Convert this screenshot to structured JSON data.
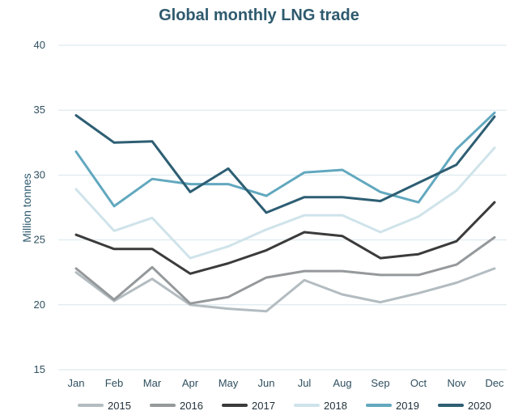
{
  "chart_data": {
    "type": "line",
    "title": "Global monthly LNG trade",
    "ylabel": "Million tonnes",
    "xlabel": "",
    "categories": [
      "Jan",
      "Feb",
      "Mar",
      "Apr",
      "May",
      "Jun",
      "Jul",
      "Aug",
      "Sep",
      "Oct",
      "Nov",
      "Dec"
    ],
    "ylim": [
      15,
      40
    ],
    "yticks": [
      15,
      20,
      25,
      30,
      35,
      40
    ],
    "grid": true,
    "legend_position": "bottom",
    "series": [
      {
        "name": "2015",
        "color": "#b3bcc0",
        "values": [
          22.5,
          20.3,
          22.0,
          20.0,
          19.7,
          19.5,
          21.9,
          20.8,
          20.2,
          20.9,
          21.7,
          22.8
        ]
      },
      {
        "name": "2016",
        "color": "#95999b",
        "values": [
          22.8,
          20.4,
          22.9,
          20.1,
          20.6,
          22.1,
          22.6,
          22.6,
          22.3,
          22.3,
          23.1,
          25.2
        ]
      },
      {
        "name": "2017",
        "color": "#3b3b3b",
        "values": [
          25.4,
          24.3,
          24.3,
          22.4,
          23.2,
          24.2,
          25.6,
          25.3,
          23.6,
          23.9,
          24.9,
          27.9
        ]
      },
      {
        "name": "2018",
        "color": "#cfe3ea",
        "values": [
          28.9,
          25.7,
          26.7,
          23.6,
          24.5,
          25.8,
          26.9,
          26.9,
          25.6,
          26.8,
          28.8,
          32.1
        ]
      },
      {
        "name": "2019",
        "color": "#62a8bf",
        "values": [
          31.8,
          27.6,
          29.7,
          29.3,
          29.3,
          28.4,
          30.2,
          30.4,
          28.7,
          27.9,
          32.0,
          34.8
        ]
      },
      {
        "name": "2020",
        "color": "#2d5e73",
        "values": [
          34.6,
          32.5,
          32.6,
          28.7,
          30.5,
          27.1,
          28.3,
          28.3,
          28.0,
          29.4,
          30.8,
          34.5
        ]
      }
    ]
  }
}
